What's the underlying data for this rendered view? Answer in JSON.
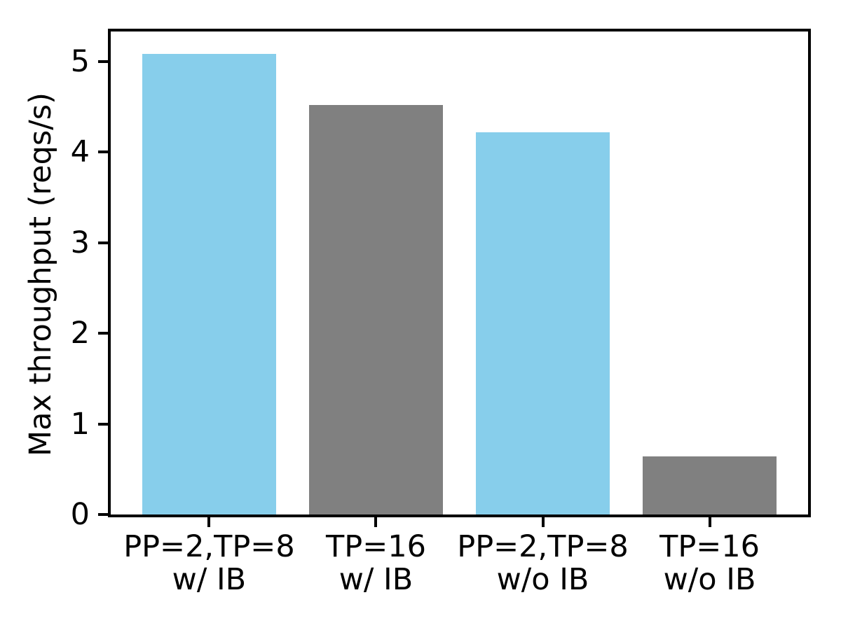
{
  "chart_data": {
    "type": "bar",
    "title": "",
    "ylabel": "Max throughput (reqs/s)",
    "xlabel": "",
    "categories": [
      "PP=2,TP=8\nw/ IB",
      "TP=16\nw/ IB",
      "PP=2,TP=8\nw/o IB",
      "TP=16\nw/o IB"
    ],
    "values": [
      5.08,
      4.52,
      4.22,
      0.64
    ],
    "bar_colors": [
      "#87CEEB",
      "#808080",
      "#87CEEB",
      "#808080"
    ],
    "yticks": [
      0,
      1,
      2,
      3,
      4,
      5
    ],
    "ylim": [
      0,
      5.33
    ],
    "bar_width_fraction": 0.8,
    "grid": false,
    "legend_position": "none",
    "axis_color": "#000000",
    "background_color": "#ffffff"
  }
}
